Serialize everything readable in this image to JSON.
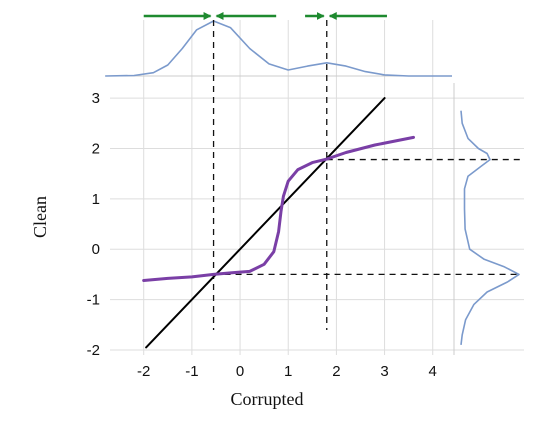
{
  "chart_data": {
    "type": "line",
    "xlabel": "Corrupted",
    "ylabel": "Clean",
    "xlim": [
      -2.7,
      4.4
    ],
    "ylim": [
      -2.1,
      3.3
    ],
    "x_ticks": [
      "-2",
      "-1",
      "0",
      "1",
      "2",
      "3",
      "4"
    ],
    "y_ticks": [
      "-2",
      "-1",
      "0",
      "1",
      "2",
      "3"
    ],
    "grid": true,
    "series": [
      {
        "role": "identity-line",
        "color": "#000000",
        "points": [
          [
            -1.95,
            -1.95
          ],
          [
            3.0,
            3.0
          ]
        ]
      },
      {
        "role": "mapping-curve",
        "color": "#7a3fa6",
        "points": [
          [
            -2.0,
            -0.62
          ],
          [
            -1.5,
            -0.58
          ],
          [
            -1.0,
            -0.55
          ],
          [
            -0.55,
            -0.5
          ],
          [
            -0.2,
            -0.47
          ],
          [
            0.2,
            -0.44
          ],
          [
            0.5,
            -0.3
          ],
          [
            0.7,
            -0.05
          ],
          [
            0.8,
            0.35
          ],
          [
            0.85,
            0.75
          ],
          [
            0.9,
            1.05
          ],
          [
            1.0,
            1.35
          ],
          [
            1.2,
            1.58
          ],
          [
            1.5,
            1.72
          ],
          [
            1.8,
            1.79
          ],
          [
            2.2,
            1.92
          ],
          [
            2.8,
            2.07
          ],
          [
            3.6,
            2.22
          ]
        ]
      }
    ],
    "top_density": {
      "color": "#7b9acc",
      "x": [
        -2.8,
        -2.2,
        -1.8,
        -1.5,
        -1.2,
        -0.9,
        -0.55,
        -0.2,
        0.2,
        0.6,
        1.0,
        1.4,
        1.8,
        2.2,
        2.6,
        3.0,
        3.5,
        4.0,
        4.4
      ],
      "density": [
        0.0,
        0.01,
        0.06,
        0.2,
        0.5,
        0.84,
        1.0,
        0.88,
        0.5,
        0.22,
        0.11,
        0.18,
        0.24,
        0.18,
        0.08,
        0.02,
        0.0,
        0.0,
        0.0
      ]
    },
    "right_density": {
      "color": "#7b9acc",
      "y": [
        2.75,
        2.5,
        2.2,
        2.0,
        1.9,
        1.78,
        1.65,
        1.45,
        1.2,
        0.8,
        0.4,
        0.0,
        -0.2,
        -0.35,
        -0.5,
        -0.65,
        -0.85,
        -1.1,
        -1.4,
        -1.7,
        -1.9
      ],
      "density": [
        0.0,
        0.02,
        0.12,
        0.3,
        0.45,
        0.5,
        0.35,
        0.12,
        0.06,
        0.06,
        0.07,
        0.15,
        0.4,
        0.75,
        1.0,
        0.8,
        0.45,
        0.22,
        0.08,
        0.02,
        0.0
      ]
    },
    "guides": [
      {
        "x": -0.55,
        "y": -0.5
      },
      {
        "x": 1.8,
        "y": 1.78
      }
    ],
    "arrows": {
      "color": "#1e8a2f",
      "pairs": [
        {
          "from_left": -2.0,
          "from_right": 0.75,
          "to": -0.55
        },
        {
          "from_left": 1.35,
          "from_right": 3.05,
          "to": 1.8
        }
      ]
    }
  }
}
